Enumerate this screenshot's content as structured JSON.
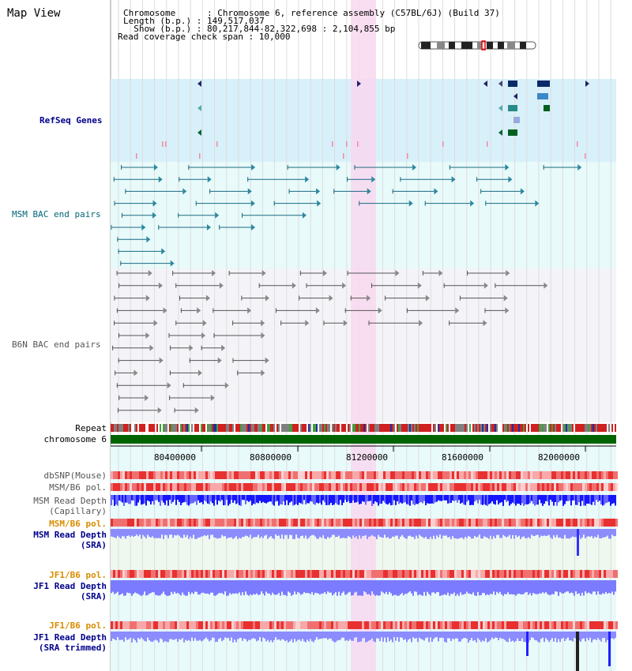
{
  "panel_title": "Map View",
  "info": {
    "chromosome": "Chromosome      : Chromosome 6, reference assembly (C57BL/6J) (Build 37)",
    "length": "Length (b.p.) : 149,517,037",
    "show": "  Show (b.p.) : 80,217,844-82,322,698 : 2,104,855 bp",
    "coverage": "Read coverage check span : 10,000"
  },
  "tracks": {
    "refseq": "RefSeq Genes",
    "msm_bac": "MSM BAC end pairs",
    "b6n_bac": "B6N BAC end pairs",
    "repeat": "Repeat",
    "chromosome": "chromosome 6",
    "dbsnp": "dbSNP(Mouse)",
    "msm_pol_1": "MSM/B6 pol.",
    "msm_depth_cap_1": "MSM Read Depth",
    "msm_depth_cap_2": "(Capillary)",
    "msm_pol_2": "MSM/B6 pol.",
    "msm_depth_sra_1": "MSM Read Depth",
    "msm_depth_sra_2": "(SRA)",
    "jf1_pol_1": "JF1/B6 pol.",
    "jf1_depth_1": "JF1 Read Depth",
    "jf1_depth_2": "(SRA)",
    "jf1_pol_2": "JF1/B6 pol.",
    "jf1_trim_1": "JF1 Read Depth",
    "jf1_trim_2": "(SRA trimmed)"
  },
  "scale": {
    "ticks": [
      "80400000",
      "80800000",
      "81200000",
      "81600000",
      "82000000"
    ]
  },
  "colors": {
    "highlight": "#f8d8f0",
    "refseq_bg": "#d8f0fa",
    "msm_bg": "#e8fafa",
    "b6n_bg": "#f4f4f8",
    "chromosome_bar": "#006400",
    "depth_blue": "#1515ff",
    "depth_light": "#8080ff"
  }
}
